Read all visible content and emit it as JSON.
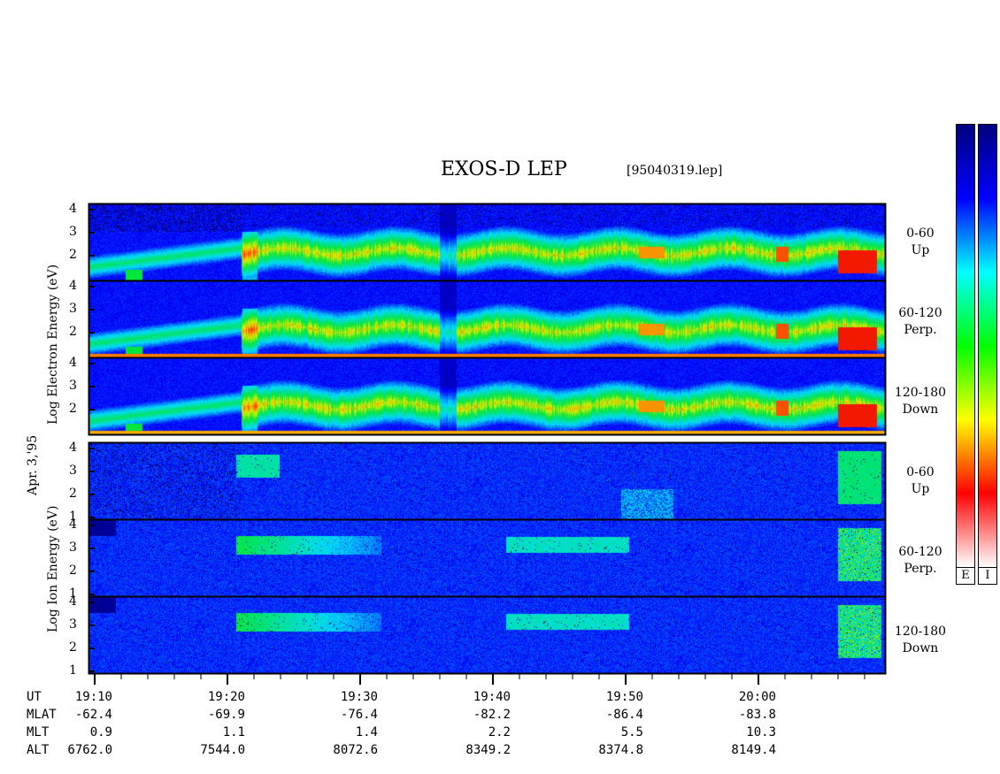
{
  "header": {
    "title": "EXOS-D LEP",
    "file": "[95040319.lep]"
  },
  "date_label": "Apr. 3,'95",
  "electron_label": "Log  Electron  Energy (eV)",
  "ion_label": "Log  Ion  Energy (eV)",
  "panels": [
    {
      "species": "electron",
      "range": "0-60",
      "direction": "Up"
    },
    {
      "species": "electron",
      "range": "60-120",
      "direction": "Perp."
    },
    {
      "species": "electron",
      "range": "120-180",
      "direction": "Down"
    },
    {
      "species": "ion",
      "range": "0-60",
      "direction": "Up"
    },
    {
      "species": "ion",
      "range": "60-120",
      "direction": "Perp."
    },
    {
      "species": "ion",
      "range": "120-180",
      "direction": "Down"
    }
  ],
  "y_ticks": {
    "electron": [
      "4",
      "3",
      "2"
    ],
    "ion": [
      "4",
      "3",
      "2",
      "1"
    ]
  },
  "colorbar": {
    "labels": [
      "E",
      "I"
    ],
    "colors": [
      "#ffffff",
      "#ff0000",
      "#ffff00",
      "#00ff00",
      "#00ffff",
      "#0000ff",
      "#000080"
    ]
  },
  "chart_data": {
    "type": "heatmap",
    "x_axis": "UT",
    "x_ticks": [
      "19:10",
      "19:20",
      "19:30",
      "19:40",
      "19:50",
      "20:00"
    ],
    "y_axis": "Log Energy (eV)",
    "ephemeris": {
      "rows": [
        {
          "name": "UT",
          "values": [
            "19:10",
            "19:20",
            "19:30",
            "19:40",
            "19:50",
            "20:00"
          ]
        },
        {
          "name": "MLAT",
          "values": [
            "-62.4",
            "-69.9",
            "-76.4",
            "-82.2",
            "-86.4",
            "-83.8"
          ]
        },
        {
          "name": "MLT",
          "values": [
            "0.9",
            "1.1",
            "1.4",
            "2.2",
            "5.5",
            "10.3"
          ]
        },
        {
          "name": "ALT",
          "values": [
            "6762.0",
            "7544.0",
            "8072.6",
            "8349.2",
            "8374.8",
            "8149.4"
          ]
        }
      ]
    }
  }
}
